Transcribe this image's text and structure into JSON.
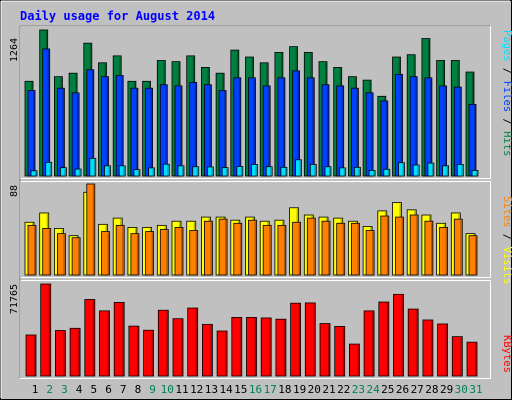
{
  "window": {
    "title": "Daily usage for August 2014"
  },
  "chart_data": [
    {
      "type": "bar",
      "title": "Daily usage for August 2014",
      "categories": [
        "1",
        "2",
        "3",
        "4",
        "5",
        "6",
        "7",
        "8",
        "9",
        "10",
        "11",
        "12",
        "13",
        "14",
        "15",
        "16",
        "17",
        "18",
        "19",
        "20",
        "21",
        "22",
        "23",
        "24",
        "25",
        "26",
        "27",
        "28",
        "29",
        "30",
        "31"
      ],
      "weekend_days": [
        "2",
        "3",
        "9",
        "10",
        "16",
        "17",
        "23",
        "24",
        "30",
        "31"
      ],
      "ylabel": "Pages / Files / Hits",
      "y_axis_max_label": "1264",
      "ylim": [
        0,
        1264
      ],
      "series": [
        {
          "name": "Hits",
          "color": "#008040",
          "values": [
            820,
            1264,
            860,
            890,
            1150,
            980,
            1040,
            820,
            820,
            1000,
            990,
            1040,
            940,
            890,
            1090,
            1030,
            980,
            1070,
            1120,
            1070,
            990,
            940,
            860,
            830,
            690,
            1030,
            1050,
            1190,
            1000,
            1000,
            900
          ]
        },
        {
          "name": "Files",
          "color": "#0040ff",
          "values": [
            740,
            1100,
            760,
            720,
            920,
            860,
            870,
            760,
            760,
            790,
            780,
            810,
            790,
            740,
            850,
            850,
            780,
            850,
            910,
            850,
            790,
            780,
            760,
            720,
            650,
            880,
            860,
            850,
            780,
            770,
            620
          ]
        },
        {
          "name": "Pages",
          "color": "#00e0ff",
          "values": [
            45,
            118,
            72,
            60,
            152,
            88,
            88,
            55,
            70,
            102,
            88,
            80,
            78,
            72,
            82,
            100,
            80,
            75,
            140,
            100,
            80,
            70,
            75,
            48,
            58,
            115,
            95,
            112,
            88,
            100,
            48
          ]
        }
      ]
    },
    {
      "type": "bar",
      "categories": [
        "1",
        "2",
        "3",
        "4",
        "5",
        "6",
        "7",
        "8",
        "9",
        "10",
        "11",
        "12",
        "13",
        "14",
        "15",
        "16",
        "17",
        "18",
        "19",
        "20",
        "21",
        "22",
        "23",
        "24",
        "25",
        "26",
        "27",
        "28",
        "29",
        "30",
        "31"
      ],
      "ylabel": "Sites / Visits",
      "y_axis_max_label": "88",
      "ylim": [
        0,
        88
      ],
      "series": [
        {
          "name": "Visits",
          "color": "#ffff00",
          "values": [
            51,
            60,
            45,
            38,
            80,
            49,
            55,
            46,
            46,
            48,
            52,
            52,
            56,
            56,
            53,
            56,
            52,
            53,
            65,
            58,
            56,
            55,
            52,
            47,
            62,
            70,
            63,
            58,
            50,
            60,
            40
          ]
        },
        {
          "name": "Sites",
          "color": "#ff8000",
          "values": [
            48,
            45,
            40,
            36,
            88,
            42,
            48,
            40,
            42,
            44,
            46,
            43,
            52,
            54,
            50,
            53,
            48,
            48,
            51,
            55,
            52,
            50,
            50,
            43,
            57,
            56,
            58,
            52,
            46,
            54,
            38
          ]
        }
      ]
    },
    {
      "type": "bar",
      "categories": [
        "1",
        "2",
        "3",
        "4",
        "5",
        "6",
        "7",
        "8",
        "9",
        "10",
        "11",
        "12",
        "13",
        "14",
        "15",
        "16",
        "17",
        "18",
        "19",
        "20",
        "21",
        "22",
        "23",
        "24",
        "25",
        "26",
        "27",
        "28",
        "29",
        "30",
        "31"
      ],
      "ylabel": "KBytes",
      "y_axis_max_label": "71765",
      "ylim": [
        0,
        71765
      ],
      "series": [
        {
          "name": "KBytes",
          "color": "#ff0000",
          "values": [
            32000,
            71765,
            35500,
            37200,
            59700,
            50800,
            57400,
            38900,
            35700,
            51300,
            44700,
            53000,
            40300,
            35100,
            45700,
            45700,
            45300,
            44300,
            56800,
            57000,
            40900,
            38700,
            24900,
            50800,
            57700,
            63700,
            52200,
            43700,
            40600,
            30700,
            26400
          ]
        }
      ]
    }
  ]
}
